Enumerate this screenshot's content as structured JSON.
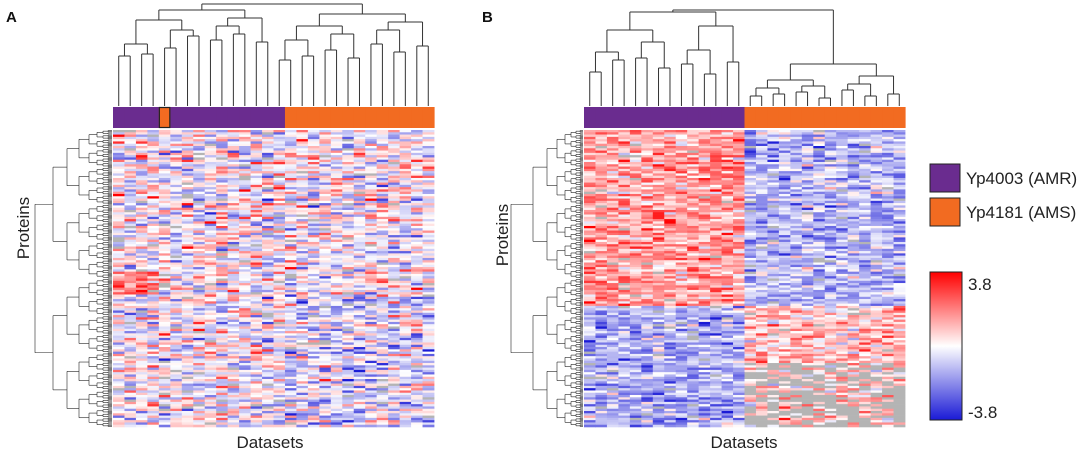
{
  "chart_data": [
    {
      "type": "heatmap",
      "panel": "A",
      "xlabel": "Datasets",
      "ylabel": "Proteins",
      "group_annotation": [
        "Yp4003 (AMR)",
        "Yp4003 (AMR)",
        "Yp4003 (AMR)",
        "Yp4003 (AMR)",
        "Yp4181 (AMS)",
        "Yp4003 (AMR)",
        "Yp4003 (AMR)",
        "Yp4003 (AMR)",
        "Yp4003 (AMR)",
        "Yp4003 (AMR)",
        "Yp4003 (AMR)",
        "Yp4003 (AMR)",
        "Yp4003 (AMR)",
        "Yp4003 (AMR)",
        "Yp4003 (AMR)",
        "Yp4181 (AMS)",
        "Yp4181 (AMS)",
        "Yp4181 (AMS)",
        "Yp4181 (AMS)",
        "Yp4181 (AMS)",
        "Yp4181 (AMS)",
        "Yp4181 (AMS)",
        "Yp4181 (AMS)",
        "Yp4181 (AMS)",
        "Yp4181 (AMS)",
        "Yp4181 (AMS)",
        "Yp4181 (AMS)",
        "Yp4181 (AMS)"
      ],
      "n_datasets": 28,
      "value_range": [
        -3.8,
        3.8
      ]
    },
    {
      "type": "heatmap",
      "panel": "B",
      "xlabel": "Datasets",
      "ylabel": "Proteins",
      "group_annotation": [
        "Yp4003 (AMR)",
        "Yp4003 (AMR)",
        "Yp4003 (AMR)",
        "Yp4003 (AMR)",
        "Yp4003 (AMR)",
        "Yp4003 (AMR)",
        "Yp4003 (AMR)",
        "Yp4003 (AMR)",
        "Yp4003 (AMR)",
        "Yp4003 (AMR)",
        "Yp4003 (AMR)",
        "Yp4003 (AMR)",
        "Yp4003 (AMR)",
        "Yp4003 (AMR)",
        "Yp4181 (AMS)",
        "Yp4181 (AMS)",
        "Yp4181 (AMS)",
        "Yp4181 (AMS)",
        "Yp4181 (AMS)",
        "Yp4181 (AMS)",
        "Yp4181 (AMS)",
        "Yp4181 (AMS)",
        "Yp4181 (AMS)",
        "Yp4181 (AMS)",
        "Yp4181 (AMS)",
        "Yp4181 (AMS)",
        "Yp4181 (AMS)",
        "Yp4181 (AMS)"
      ],
      "n_datasets": 28,
      "value_range": [
        -3.8,
        3.8
      ]
    }
  ],
  "legend": {
    "items": [
      {
        "label": "Yp4003 (AMR)",
        "color": "#6a2c8f"
      },
      {
        "label": "Yp4181 (AMS)",
        "color": "#f26b21"
      }
    ]
  },
  "color_scale": {
    "max_label": "3.8",
    "min_label": "-3.8",
    "high_color": "#ff0000",
    "mid_color": "#ffffff",
    "low_color": "#1a1ad6"
  },
  "panels": {
    "a": {
      "letter": "A",
      "xlabel": "Datasets",
      "ylabel": "Proteins"
    },
    "b": {
      "letter": "B",
      "xlabel": "Datasets",
      "ylabel": "Proteins"
    }
  }
}
